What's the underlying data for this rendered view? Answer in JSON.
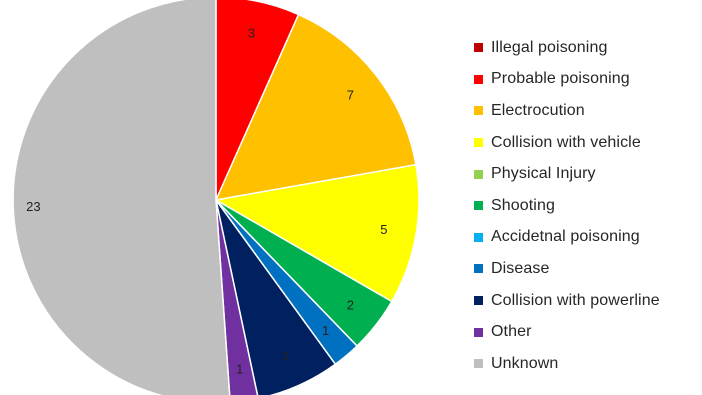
{
  "chart_data": {
    "type": "pie",
    "title": "",
    "start_angle_deg": 0,
    "direction": "clockwise",
    "legend_position": "right",
    "slices": [
      {
        "label": "Illegal poisoning",
        "value": 0,
        "color": "#C00000"
      },
      {
        "label": "Probable poisoning",
        "value": 3,
        "color": "#FF0000"
      },
      {
        "label": "Electrocution",
        "value": 7,
        "color": "#FFC000"
      },
      {
        "label": "Collision with vehicle",
        "value": 5,
        "color": "#FFFF00"
      },
      {
        "label": "Physical Injury",
        "value": 0,
        "color": "#92D050"
      },
      {
        "label": "Shooting",
        "value": 2,
        "color": "#00B050"
      },
      {
        "label": "Accidetnal poisoning",
        "value": 0,
        "color": "#00B0F0"
      },
      {
        "label": "Disease",
        "value": 1,
        "color": "#0070C0"
      },
      {
        "label": "Collision with powerline",
        "value": 3,
        "color": "#002060"
      },
      {
        "label": "Other",
        "value": 1,
        "color": "#7030A0"
      },
      {
        "label": "Unknown",
        "value": 23,
        "color": "#BFBFBF"
      }
    ]
  }
}
